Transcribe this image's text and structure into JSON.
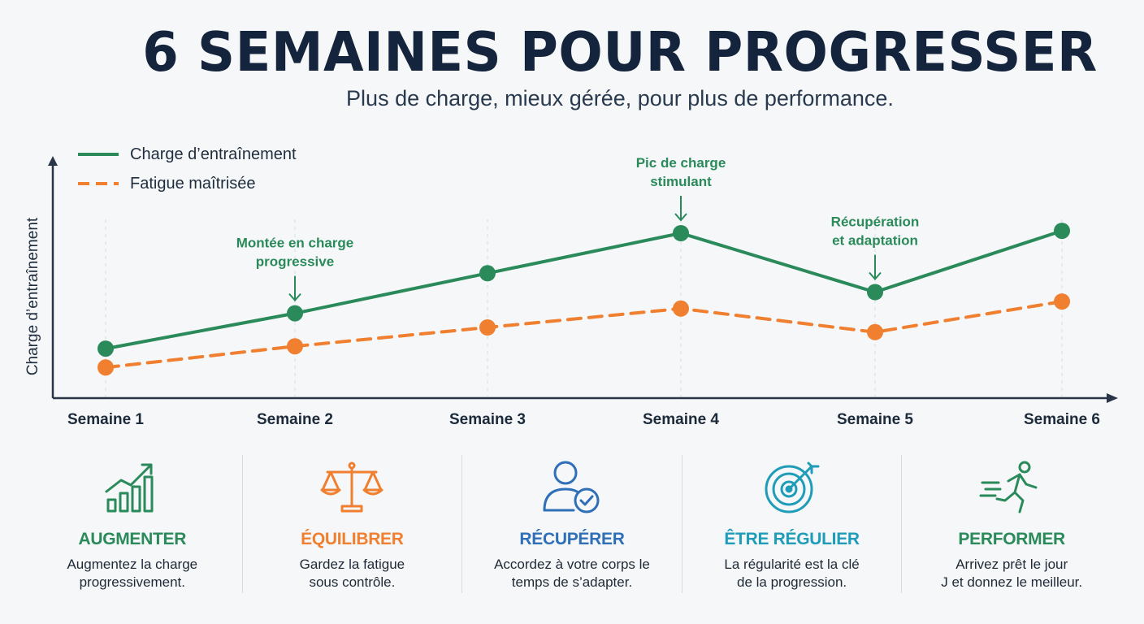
{
  "header": {
    "title": "6 SEMAINES POUR PROGRESSER",
    "subtitle": "Plus de charge, mieux gérée, pour plus de performance."
  },
  "colors": {
    "green": "#2a8a5a",
    "orange": "#f07f2f",
    "blue": "#2f6fb8",
    "teal": "#1f9cb8",
    "axis": "#2a3648"
  },
  "chart_data": {
    "type": "line",
    "categories": [
      "Semaine 1",
      "Semaine 2",
      "Semaine 3",
      "Semaine 4",
      "Semaine 5",
      "Semaine 6"
    ],
    "ylabel": "Charge d’entraînement",
    "xlabel": "",
    "ylim": [
      0,
      100
    ],
    "grid": false,
    "legend_position": "top-left",
    "series": [
      {
        "name": "Charge d’entraînement",
        "style": "solid",
        "color": "#2a8a5a",
        "values": [
          21,
          36,
          53,
          70,
          45,
          71
        ]
      },
      {
        "name": "Fatigue maîtrisée",
        "style": "dashed",
        "color": "#f07f2f",
        "values": [
          13,
          22,
          30,
          38,
          28,
          41
        ]
      }
    ],
    "annotations": [
      {
        "category_index": 1,
        "series_index": 0,
        "lines": [
          "Montée en charge",
          "progressive"
        ]
      },
      {
        "category_index": 3,
        "series_index": 0,
        "lines": [
          "Pic de charge",
          "stimulant"
        ]
      },
      {
        "category_index": 4,
        "series_index": 0,
        "lines": [
          "Récupération",
          "et adaptation"
        ]
      }
    ]
  },
  "features": [
    {
      "icon": "growth-chart-icon",
      "title": "AUGMENTER",
      "desc": "Augmentez la charge\nprogressivement.",
      "color": "#2a8a5a"
    },
    {
      "icon": "balance-scale-icon",
      "title": "ÉQUILIBRER",
      "desc": "Gardez la fatigue\nsous contrôle.",
      "color": "#f07f2f"
    },
    {
      "icon": "user-check-icon",
      "title": "RÉCUPÉRER",
      "desc": "Accordez à votre corps le\ntemps de s’adapter.",
      "color": "#2f6fb8"
    },
    {
      "icon": "target-icon",
      "title": "ÊTRE RÉGULIER",
      "desc": "La régularité est la clé\nde la progression.",
      "color": "#1f9cb8"
    },
    {
      "icon": "runner-icon",
      "title": "PERFORMER",
      "desc": "Arrivez prêt le jour\nJ et donnez le meilleur.",
      "color": "#2a8a5a"
    }
  ]
}
